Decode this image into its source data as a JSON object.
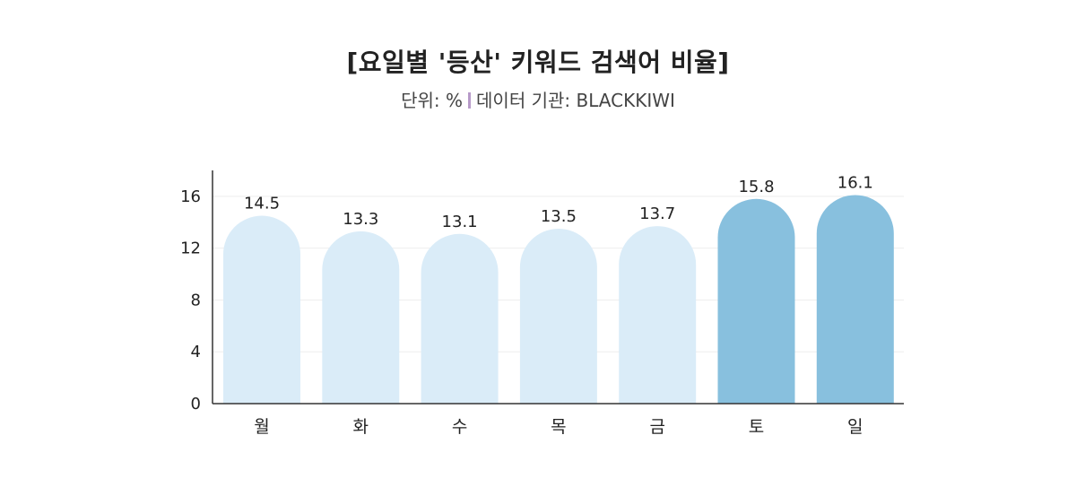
{
  "chart_data": {
    "type": "bar",
    "title": "[요일별 '등산' 키워드 검색어 비율]",
    "subtitle_unit": "단위: %",
    "subtitle_source": "데이터 기관: BLACKKIWI",
    "categories": [
      "월",
      "화",
      "수",
      "목",
      "금",
      "토",
      "일"
    ],
    "values": [
      14.5,
      13.3,
      13.1,
      13.5,
      13.7,
      15.8,
      16.1
    ],
    "value_labels": [
      "14.5",
      "13.3",
      "13.1",
      "13.5",
      "13.7",
      "15.8",
      "16.1"
    ],
    "highlighted": [
      false,
      false,
      false,
      false,
      false,
      true,
      true
    ],
    "ylim": [
      0,
      18
    ],
    "yticks": [
      0,
      4,
      8,
      12,
      16
    ],
    "ytick_labels": [
      "0",
      "4",
      "8",
      "12",
      "16"
    ],
    "xlabel": "",
    "ylabel": "",
    "grid": true,
    "legend": "none",
    "colors": {
      "bar_default": "#daecf8",
      "bar_highlight": "#88c0de",
      "separator": "#b79ac9",
      "axis": "#333333",
      "grid": "#eeeeee"
    }
  }
}
